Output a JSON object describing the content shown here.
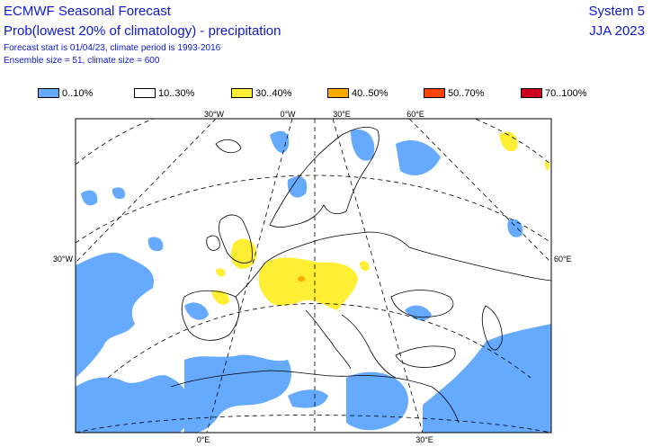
{
  "header": {
    "title": "ECMWF Seasonal Forecast",
    "subtitle": "Prob(lowest 20% of climatology) - precipitation",
    "info_line1": "Forecast start is 01/04/23, climate period is 1993-2016",
    "info_line2": "Ensemble size = 51, climate size = 600",
    "system": "System 5",
    "season": "JJA 2023"
  },
  "legend": [
    {
      "label": "0..10%",
      "color": "#66aaff"
    },
    {
      "label": "10..30%",
      "color": "#ffffff"
    },
    {
      "label": "30..40%",
      "color": "#ffee33"
    },
    {
      "label": "40..50%",
      "color": "#ffaa00"
    },
    {
      "label": "50..70%",
      "color": "#ff4400"
    },
    {
      "label": "70..100%",
      "color": "#cc0022"
    }
  ],
  "map": {
    "top_labels": [
      "30°W",
      "0°W",
      "30°E",
      "60°E"
    ],
    "left_label": "30°W",
    "right_label": "60°E",
    "bottom_labels": [
      "0°E",
      "30°E"
    ]
  }
}
